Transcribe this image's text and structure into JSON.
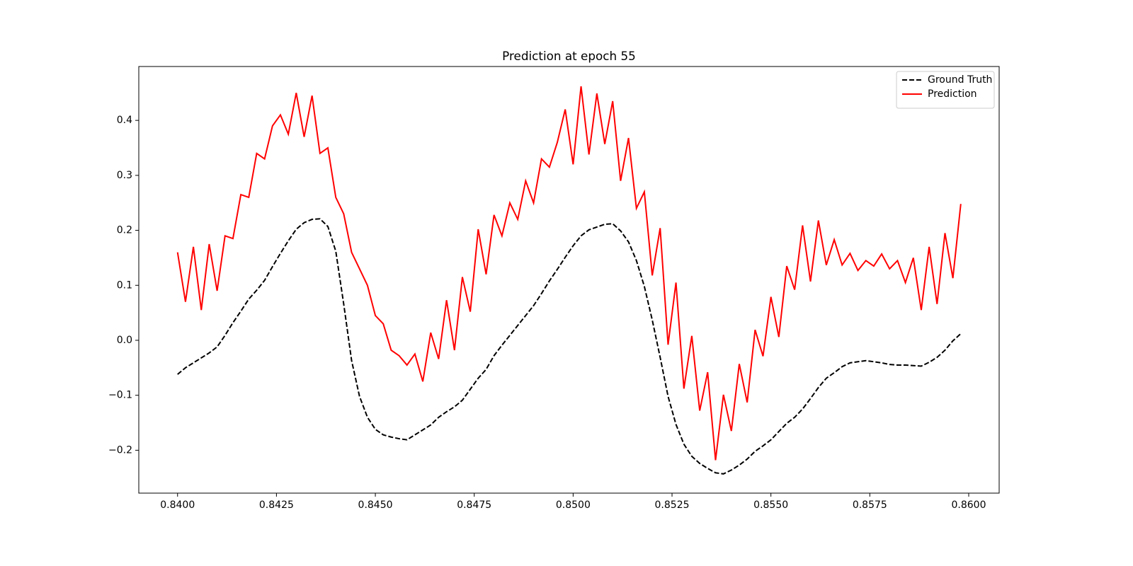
{
  "chart_data": {
    "type": "line",
    "title": "Prediction at epoch 55",
    "x": [
      0.84,
      0.8402,
      0.8404,
      0.8406,
      0.8408,
      0.841,
      0.8412,
      0.8414,
      0.8416,
      0.8418,
      0.842,
      0.8422,
      0.8424,
      0.8426,
      0.8428,
      0.843,
      0.8432,
      0.8434,
      0.8436,
      0.8438,
      0.844,
      0.8442,
      0.8444,
      0.8446,
      0.8448,
      0.845,
      0.8452,
      0.8454,
      0.8456,
      0.8458,
      0.846,
      0.8462,
      0.8464,
      0.8466,
      0.8468,
      0.847,
      0.8472,
      0.8474,
      0.8476,
      0.8478,
      0.848,
      0.8482,
      0.8484,
      0.8486,
      0.8488,
      0.849,
      0.8492,
      0.8494,
      0.8496,
      0.8498,
      0.85,
      0.8502,
      0.8504,
      0.8506,
      0.8508,
      0.851,
      0.8512,
      0.8514,
      0.8516,
      0.8518,
      0.852,
      0.8522,
      0.8524,
      0.8526,
      0.8528,
      0.853,
      0.8532,
      0.8534,
      0.8536,
      0.8538,
      0.854,
      0.8542,
      0.8544,
      0.8546,
      0.8548,
      0.855,
      0.8552,
      0.8554,
      0.8556,
      0.8558,
      0.856,
      0.8562,
      0.8564,
      0.8566,
      0.8568,
      0.857,
      0.8572,
      0.8574,
      0.8576,
      0.8578,
      0.858,
      0.8582,
      0.8584,
      0.8586,
      0.8588,
      0.859,
      0.8592,
      0.8594,
      0.8596,
      0.8598
    ],
    "series": [
      {
        "name": "Ground Truth",
        "color": "#000000",
        "linestyle": "dashed",
        "values": [
          -0.062,
          -0.05,
          -0.041,
          -0.032,
          -0.023,
          -0.012,
          0.009,
          0.032,
          0.053,
          0.075,
          0.091,
          0.109,
          0.134,
          0.158,
          0.181,
          0.202,
          0.214,
          0.22,
          0.221,
          0.207,
          0.162,
          0.066,
          -0.037,
          -0.102,
          -0.14,
          -0.162,
          -0.172,
          -0.176,
          -0.179,
          -0.181,
          -0.172,
          -0.163,
          -0.154,
          -0.14,
          -0.13,
          -0.121,
          -0.109,
          -0.089,
          -0.069,
          -0.053,
          -0.028,
          -0.009,
          0.009,
          0.027,
          0.045,
          0.063,
          0.085,
          0.108,
          0.129,
          0.151,
          0.172,
          0.19,
          0.201,
          0.206,
          0.211,
          0.212,
          0.199,
          0.179,
          0.145,
          0.098,
          0.037,
          -0.031,
          -0.102,
          -0.153,
          -0.189,
          -0.211,
          -0.224,
          -0.233,
          -0.241,
          -0.243,
          -0.236,
          -0.227,
          -0.216,
          -0.202,
          -0.192,
          -0.181,
          -0.166,
          -0.151,
          -0.14,
          -0.125,
          -0.106,
          -0.086,
          -0.069,
          -0.059,
          -0.048,
          -0.041,
          -0.039,
          -0.037,
          -0.039,
          -0.041,
          -0.044,
          -0.045,
          -0.045,
          -0.046,
          -0.047,
          -0.04,
          -0.031,
          -0.018,
          -0.001,
          0.012
        ]
      },
      {
        "name": "Prediction",
        "color": "#ff0000",
        "linestyle": "solid",
        "values": [
          0.16,
          0.07,
          0.17,
          0.055,
          0.175,
          0.09,
          0.19,
          0.185,
          0.265,
          0.26,
          0.34,
          0.33,
          0.39,
          0.41,
          0.375,
          0.45,
          0.37,
          0.445,
          0.34,
          0.35,
          0.26,
          0.23,
          0.16,
          0.13,
          0.1,
          0.045,
          0.03,
          -0.018,
          -0.028,
          -0.045,
          -0.025,
          -0.075,
          0.014,
          -0.034,
          0.073,
          -0.018,
          0.115,
          0.052,
          0.202,
          0.12,
          0.228,
          0.19,
          0.25,
          0.22,
          0.29,
          0.25,
          0.33,
          0.315,
          0.36,
          0.42,
          0.32,
          0.462,
          0.338,
          0.449,
          0.357,
          0.435,
          0.29,
          0.368,
          0.24,
          0.27,
          0.118,
          0.204,
          -0.008,
          0.105,
          -0.088,
          0.008,
          -0.128,
          -0.058,
          -0.218,
          -0.099,
          -0.165,
          -0.043,
          -0.113,
          0.019,
          -0.029,
          0.079,
          0.006,
          0.135,
          0.092,
          0.209,
          0.107,
          0.218,
          0.137,
          0.183,
          0.137,
          0.158,
          0.127,
          0.145,
          0.135,
          0.157,
          0.13,
          0.145,
          0.105,
          0.15,
          0.055,
          0.17,
          0.066,
          0.195,
          0.113,
          0.248
        ]
      }
    ],
    "xlim": [
      0.83902,
      0.86077
    ],
    "ylim": [
      -0.278,
      0.498
    ],
    "xticks": [
      {
        "value": 0.84,
        "label": "0.8400"
      },
      {
        "value": 0.8425,
        "label": "0.8425"
      },
      {
        "value": 0.845,
        "label": "0.8450"
      },
      {
        "value": 0.8475,
        "label": "0.8475"
      },
      {
        "value": 0.85,
        "label": "0.8500"
      },
      {
        "value": 0.8525,
        "label": "0.8525"
      },
      {
        "value": 0.855,
        "label": "0.8550"
      },
      {
        "value": 0.8575,
        "label": "0.8575"
      },
      {
        "value": 0.86,
        "label": "0.8600"
      }
    ],
    "yticks": [
      {
        "value": -0.2,
        "label": "−0.2"
      },
      {
        "value": -0.1,
        "label": "−0.1"
      },
      {
        "value": 0.0,
        "label": "0.0"
      },
      0.1,
      0.2,
      0.3,
      0.4
    ],
    "grid": false,
    "legend": "upper right"
  }
}
